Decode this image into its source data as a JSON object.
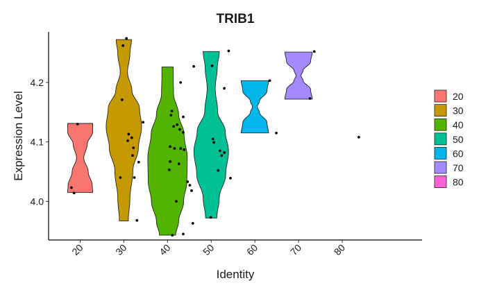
{
  "chart_data": {
    "type": "violin",
    "title": "TRIB1",
    "xlabel": "Identity",
    "ylabel": "Expression Level",
    "categories": [
      "20",
      "30",
      "40",
      "50",
      "60",
      "70",
      "80"
    ],
    "legend_position": "right",
    "ylim": [
      3.935,
      4.285
    ],
    "yticks": [
      4.0,
      4.1,
      4.2
    ],
    "ytick_labels": [
      "4.0",
      "4.1",
      "4.2"
    ],
    "colors": {
      "20": "#F8766D",
      "30": "#C49A00",
      "40": "#53B400",
      "50": "#00C094",
      "60": "#00B6EB",
      "70": "#A58AFF",
      "80": "#FB61D7"
    },
    "violins": [
      {
        "group": "20",
        "min": 4.015,
        "max": 4.131
      },
      {
        "group": "30",
        "min": 3.967,
        "max": 4.272
      },
      {
        "group": "40",
        "min": 3.943,
        "max": 4.226
      },
      {
        "group": "50",
        "min": 3.972,
        "max": 4.252
      },
      {
        "group": "60",
        "min": 4.115,
        "max": 4.203
      },
      {
        "group": "70",
        "min": 4.172,
        "max": 4.251
      },
      {
        "group": "80",
        "min": null,
        "max": null
      }
    ],
    "points": [
      {
        "x": 28.6,
        "y": 4.13
      },
      {
        "x": 27.2,
        "y": 4.023
      },
      {
        "x": 27.8,
        "y": 4.014
      },
      {
        "x": 39.0,
        "y": 4.262
      },
      {
        "x": 39.8,
        "y": 4.274
      },
      {
        "x": 38.8,
        "y": 4.171
      },
      {
        "x": 40.3,
        "y": 4.113
      },
      {
        "x": 41.0,
        "y": 4.107
      },
      {
        "x": 40.1,
        "y": 4.102
      },
      {
        "x": 41.4,
        "y": 4.09
      },
      {
        "x": 41.2,
        "y": 4.077
      },
      {
        "x": 42.6,
        "y": 4.066
      },
      {
        "x": 38.4,
        "y": 4.04
      },
      {
        "x": 41.6,
        "y": 4.04
      },
      {
        "x": 43.6,
        "y": 4.133
      },
      {
        "x": 42.2,
        "y": 3.968
      },
      {
        "x": 52.2,
        "y": 4.2
      },
      {
        "x": 50.2,
        "y": 4.152
      },
      {
        "x": 50.0,
        "y": 4.145
      },
      {
        "x": 52.8,
        "y": 4.142
      },
      {
        "x": 51.4,
        "y": 4.129
      },
      {
        "x": 50.6,
        "y": 4.126
      },
      {
        "x": 52.0,
        "y": 4.121
      },
      {
        "x": 52.8,
        "y": 4.116
      },
      {
        "x": 49.8,
        "y": 4.092
      },
      {
        "x": 50.8,
        "y": 4.089
      },
      {
        "x": 52.2,
        "y": 4.089
      },
      {
        "x": 53.0,
        "y": 4.087
      },
      {
        "x": 51.8,
        "y": 4.063
      },
      {
        "x": 49.8,
        "y": 4.067
      },
      {
        "x": 49.6,
        "y": 4.053
      },
      {
        "x": 53.8,
        "y": 4.033
      },
      {
        "x": 54.3,
        "y": 4.027
      },
      {
        "x": 54.7,
        "y": 4.018
      },
      {
        "x": 51.2,
        "y": 4.0
      },
      {
        "x": 50.3,
        "y": 3.943
      },
      {
        "x": 52.8,
        "y": 3.945
      },
      {
        "x": 55.0,
        "y": 3.963
      },
      {
        "x": 55.2,
        "y": 4.227
      },
      {
        "x": 59.4,
        "y": 4.228
      },
      {
        "x": 63.2,
        "y": 4.253
      },
      {
        "x": 62.2,
        "y": 4.19
      },
      {
        "x": 59.6,
        "y": 4.105
      },
      {
        "x": 59.8,
        "y": 4.099
      },
      {
        "x": 61.2,
        "y": 4.085
      },
      {
        "x": 62.2,
        "y": 4.082
      },
      {
        "x": 61.6,
        "y": 4.077
      },
      {
        "x": 60.8,
        "y": 4.052
      },
      {
        "x": 63.6,
        "y": 4.039
      },
      {
        "x": 59.1,
        "y": 3.973
      },
      {
        "x": 72.6,
        "y": 4.203
      },
      {
        "x": 74.1,
        "y": 4.115
      },
      {
        "x": 82.8,
        "y": 4.252
      },
      {
        "x": 81.8,
        "y": 4.173
      },
      {
        "x": 93.0,
        "y": 4.108
      }
    ],
    "legend_title": ""
  }
}
